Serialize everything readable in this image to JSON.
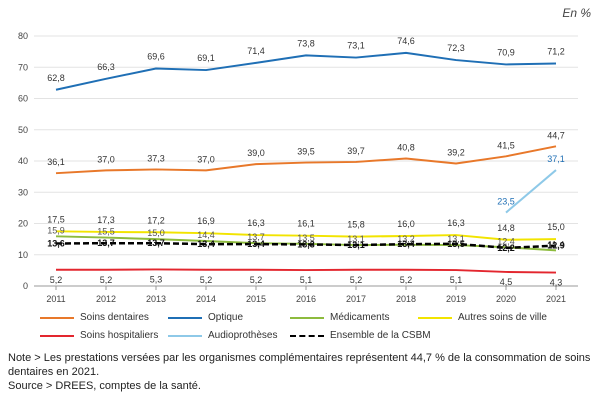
{
  "unit_label": "En %",
  "chart_data": {
    "type": "line",
    "title": "",
    "xlabel": "",
    "ylabel": "",
    "categories": [
      "2011",
      "2012",
      "2013",
      "2014",
      "2015",
      "2016",
      "2017",
      "2018",
      "2019",
      "2020",
      "2021"
    ],
    "ylim": [
      0,
      80
    ],
    "yticks": [
      0,
      10,
      20,
      30,
      40,
      50,
      60,
      70,
      80
    ],
    "grid": true,
    "series": [
      {
        "key": "optique",
        "name": "Optique",
        "color": "#1f6fb5",
        "dashed": false,
        "bold_labels": false,
        "values": [
          62.8,
          66.3,
          69.6,
          69.1,
          71.4,
          73.8,
          73.1,
          74.6,
          72.3,
          70.9,
          71.2
        ],
        "labels": [
          "62,8",
          "66,3",
          "69,6",
          "69,1",
          "71,4",
          "73,8",
          "73,1",
          "74,6",
          "72,3",
          "70,9",
          "71,2"
        ]
      },
      {
        "key": "dentaires",
        "name": "Soins dentaires",
        "color": "#e8782a",
        "dashed": false,
        "bold_labels": false,
        "values": [
          36.1,
          37.0,
          37.3,
          37.0,
          39.0,
          39.5,
          39.7,
          40.8,
          39.2,
          41.5,
          44.7
        ],
        "labels": [
          "36,1",
          "37,0",
          "37,3",
          "37,0",
          "39,0",
          "39,5",
          "39,7",
          "40,8",
          "39,2",
          "41,5",
          "44,7"
        ]
      },
      {
        "key": "medicaments",
        "name": "Médicaments",
        "color": "#8dbb3d",
        "dashed": false,
        "bold_labels": false,
        "values": [
          15.9,
          15.5,
          15.0,
          14.4,
          13.7,
          13.5,
          13.1,
          13.2,
          13.1,
          12.4,
          11.4
        ],
        "labels": [
          "15,9",
          "15,5",
          "15,0",
          "14,4",
          "13,7",
          "13,5",
          "13,1",
          "13,2",
          "13,1",
          "12,4",
          "11,4"
        ]
      },
      {
        "key": "autres",
        "name": "Autres soins de ville",
        "color": "#f2e400",
        "dashed": false,
        "bold_labels": false,
        "values": [
          17.5,
          17.3,
          17.2,
          16.9,
          16.3,
          16.1,
          15.8,
          16.0,
          16.3,
          14.8,
          15.0
        ],
        "labels": [
          "17,5",
          "17,3",
          "17,2",
          "16,9",
          "16,3",
          "16,1",
          "15,8",
          "16,0",
          "16,3",
          "14,8",
          "15,0"
        ]
      },
      {
        "key": "hospitaliers",
        "name": "Soins hospitaliers",
        "color": "#e3262e",
        "dashed": false,
        "bold_labels": false,
        "values": [
          5.2,
          5.2,
          5.3,
          5.2,
          5.2,
          5.1,
          5.2,
          5.2,
          5.1,
          4.5,
          4.3
        ],
        "labels": [
          "5,2",
          "5,2",
          "5,3",
          "5,2",
          "5,2",
          "5,1",
          "5,2",
          "5,2",
          "5,1",
          "4,5",
          "4,3"
        ]
      },
      {
        "key": "audio",
        "name": "Audioprothèses",
        "color": "#8ec9e8",
        "dashed": false,
        "bold_labels": false,
        "values": [
          null,
          null,
          null,
          null,
          null,
          null,
          null,
          null,
          null,
          23.5,
          37.1
        ],
        "labels": [
          null,
          null,
          null,
          null,
          null,
          null,
          null,
          null,
          null,
          "23,5",
          "37,1"
        ]
      },
      {
        "key": "csbm",
        "name": "Ensemble de la CSBM",
        "color": "#000000",
        "dashed": true,
        "bold_labels": true,
        "values": [
          13.6,
          13.7,
          13.7,
          13.4,
          13.4,
          13.3,
          13.1,
          13.4,
          13.5,
          12.2,
          12.9
        ],
        "labels": [
          "13,6",
          "13,7",
          "13,7",
          "13,4",
          "13,4",
          "13,3",
          "13,1",
          "13,4",
          "13,5",
          "12,2",
          "12,9"
        ]
      }
    ]
  },
  "legend": [
    {
      "name": "Soins dentaires",
      "color": "#e8782a",
      "dashed": false
    },
    {
      "name": "Optique",
      "color": "#1f6fb5",
      "dashed": false
    },
    {
      "name": "Médicaments",
      "color": "#8dbb3d",
      "dashed": false
    },
    {
      "name": "Autres soins de ville",
      "color": "#f2e400",
      "dashed": false
    },
    {
      "name": "Soins hospitaliers",
      "color": "#e3262e",
      "dashed": false
    },
    {
      "name": "Audioprothèses",
      "color": "#8ec9e8",
      "dashed": false
    },
    {
      "name": "Ensemble de la CSBM",
      "color": "#000000",
      "dashed": true
    }
  ],
  "note": {
    "label": "Note >",
    "text": "Les prestations versées par les organismes complémentaires représentent 44,7 % de la consommation de soins dentaires en 2021."
  },
  "source": {
    "label": "Source >",
    "text": "DREES, comptes de la santé."
  }
}
